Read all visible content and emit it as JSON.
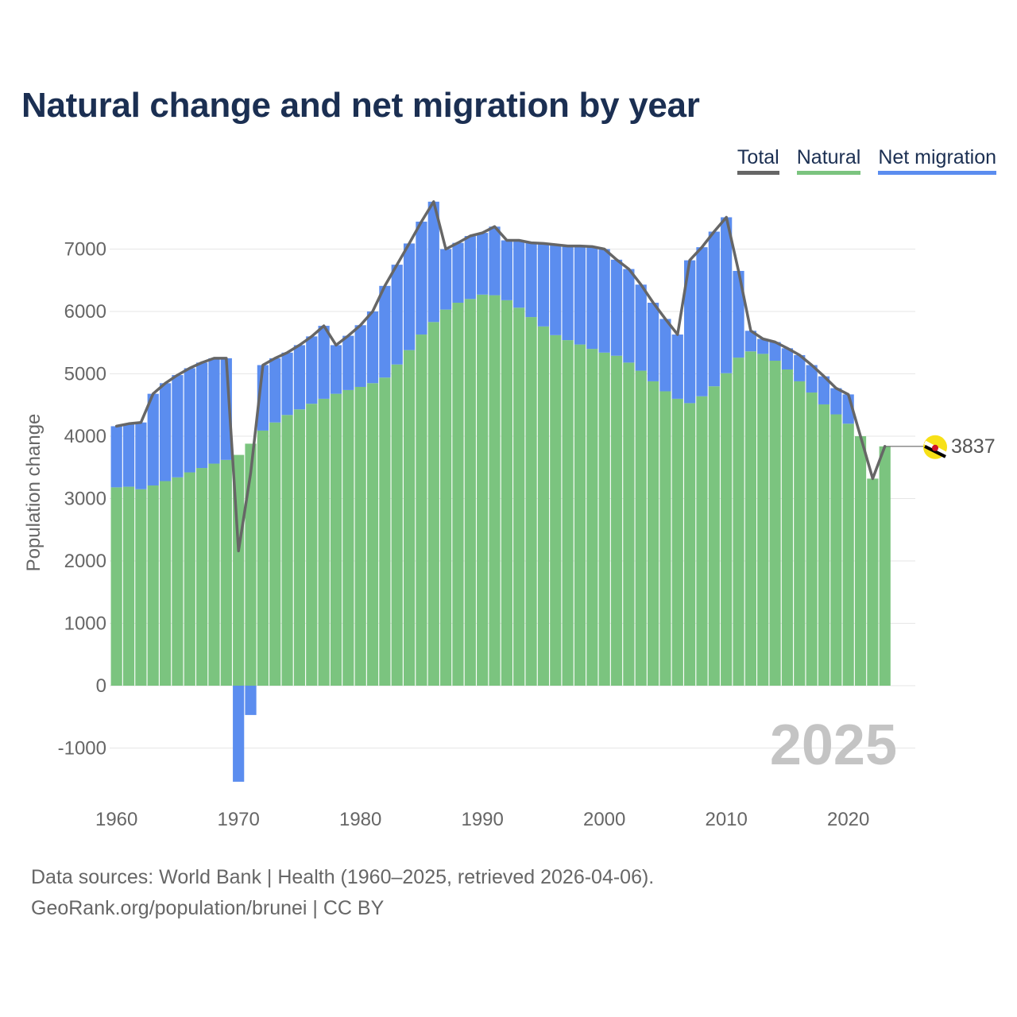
{
  "title": "Natural change and net migration by year",
  "legend": {
    "total": "Total",
    "natural": "Natural",
    "migration": "Net migration"
  },
  "colors": {
    "natural": "#7bc47f",
    "migration": "#5b8def",
    "total": "#666666",
    "title": "#1b2f52"
  },
  "footer": {
    "line1": "Data sources: World Bank | Health (1960–2025, retrieved 2026-04-06).",
    "line2": "GeoRank.org/population/brunei | CC BY"
  },
  "chart_data": {
    "type": "bar",
    "stacked": true,
    "title": "Natural change and net migration by year",
    "xlabel": "",
    "ylabel": "Population change",
    "ylim": [
      -1500,
      8000
    ],
    "yticks": [
      -1000,
      0,
      1000,
      2000,
      3000,
      4000,
      5000,
      6000,
      7000
    ],
    "xticks": [
      1960,
      1970,
      1980,
      1990,
      2000,
      2010,
      2020
    ],
    "year_label": "2025",
    "end_label": "3837",
    "grid": true,
    "legend_position": "top-right",
    "years": [
      1960,
      1961,
      1962,
      1963,
      1964,
      1965,
      1966,
      1967,
      1968,
      1969,
      1970,
      1971,
      1972,
      1973,
      1974,
      1975,
      1976,
      1977,
      1978,
      1979,
      1980,
      1981,
      1982,
      1983,
      1984,
      1985,
      1986,
      1987,
      1988,
      1989,
      1990,
      1991,
      1992,
      1993,
      1994,
      1995,
      1996,
      1997,
      1998,
      1999,
      2000,
      2001,
      2002,
      2003,
      2004,
      2005,
      2006,
      2007,
      2008,
      2009,
      2010,
      2011,
      2012,
      2013,
      2014,
      2015,
      2016,
      2017,
      2018,
      2019,
      2020,
      2021,
      2022,
      2023
    ],
    "series": [
      {
        "name": "Natural",
        "values": [
          3180,
          3190,
          3150,
          3210,
          3280,
          3340,
          3420,
          3490,
          3560,
          3620,
          3700,
          3880,
          4090,
          4220,
          4340,
          4430,
          4520,
          4600,
          4680,
          4740,
          4790,
          4850,
          4940,
          5150,
          5380,
          5630,
          5830,
          6030,
          6140,
          6200,
          6270,
          6260,
          6180,
          6060,
          5910,
          5760,
          5620,
          5540,
          5470,
          5400,
          5340,
          5290,
          5180,
          5050,
          4880,
          4720,
          4600,
          4530,
          4640,
          4800,
          5010,
          5260,
          5360,
          5320,
          5210,
          5070,
          4880,
          4700,
          4510,
          4350,
          4200,
          4000,
          3320,
          3837
        ]
      },
      {
        "name": "Net migration",
        "values": [
          980,
          1010,
          1070,
          1470,
          1570,
          1640,
          1670,
          1690,
          1690,
          1630,
          -1540,
          -470,
          1050,
          1030,
          1000,
          1030,
          1080,
          1170,
          780,
          870,
          990,
          1150,
          1470,
          1600,
          1710,
          1810,
          1930,
          970,
          960,
          1010,
          990,
          1100,
          960,
          1080,
          1190,
          1330,
          1450,
          1510,
          1580,
          1640,
          1660,
          1540,
          1500,
          1380,
          1260,
          1160,
          1030,
          2290,
          2390,
          2480,
          2500,
          1390,
          330,
          240,
          300,
          340,
          420,
          440,
          450,
          420,
          470,
          0,
          0,
          0
        ]
      },
      {
        "name": "Total",
        "values": [
          4160,
          4200,
          4220,
          4680,
          4850,
          4980,
          5090,
          5180,
          5250,
          5250,
          2160,
          3410,
          5140,
          5250,
          5340,
          5460,
          5600,
          5770,
          5460,
          5610,
          5780,
          6000,
          6410,
          6750,
          7090,
          7440,
          7760,
          7000,
          7100,
          7210,
          7260,
          7360,
          7140,
          7140,
          7100,
          7090,
          7070,
          7050,
          7050,
          7040,
          7000,
          6830,
          6680,
          6430,
          6140,
          5880,
          5630,
          6820,
          7030,
          7280,
          7510,
          6650,
          5690,
          5560,
          5510,
          5410,
          5300,
          5140,
          4960,
          4770,
          4670,
          4000,
          3320,
          3837
        ]
      }
    ]
  }
}
